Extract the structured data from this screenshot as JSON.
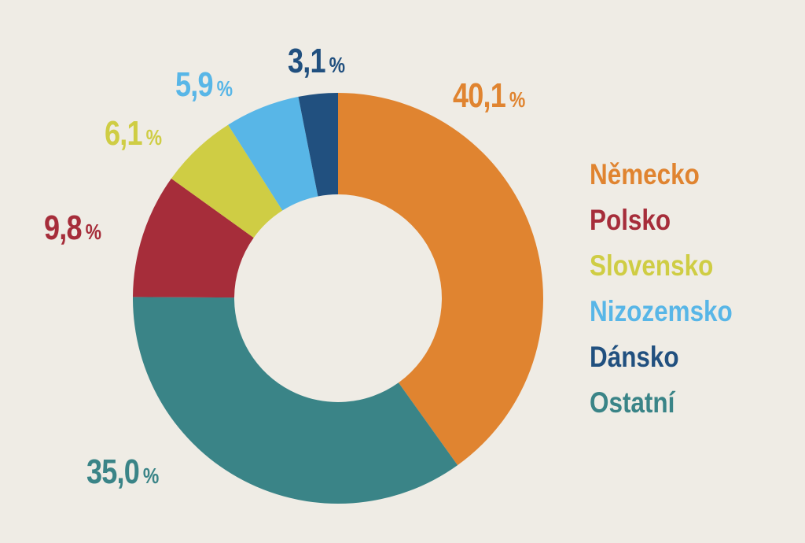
{
  "chart_data": {
    "type": "pie",
    "variant": "donut",
    "title": "",
    "categories": [
      "Německo",
      "Ostatní",
      "Polsko",
      "Slovensko",
      "Nizozemsko",
      "Dánsko"
    ],
    "values": [
      40.1,
      35.0,
      9.8,
      6.1,
      5.9,
      3.1
    ],
    "value_labels": [
      "40,1",
      "35,0",
      "9,8",
      "6,1",
      "5,9",
      "3,1"
    ],
    "unit": "%",
    "colors": [
      "#e08430",
      "#3a8487",
      "#a62d3a",
      "#cfcd44",
      "#58b6e7",
      "#21507f"
    ],
    "start_angle_deg": 0,
    "direction": "clockwise",
    "legend_position": "right",
    "legend": [
      {
        "label": "Německo",
        "color": "#e08430"
      },
      {
        "label": "Polsko",
        "color": "#a62d3a"
      },
      {
        "label": "Slovensko",
        "color": "#cfcd44"
      },
      {
        "label": "Nizozemsko",
        "color": "#58b6e7"
      },
      {
        "label": "Dánsko",
        "color": "#21507f"
      },
      {
        "label": "Ostatní",
        "color": "#3a8487"
      }
    ]
  },
  "labels": {
    "nemecko": {
      "value": "40,1",
      "unit": "%"
    },
    "ostatni": {
      "value": "35,0",
      "unit": "%"
    },
    "polsko": {
      "value": "9,8",
      "unit": "%"
    },
    "slovensko": {
      "value": "6,1",
      "unit": "%"
    },
    "nizozemsko": {
      "value": "5,9",
      "unit": "%"
    },
    "dansko": {
      "value": "3,1",
      "unit": "%"
    }
  },
  "colors": {
    "background": "#efece5"
  }
}
